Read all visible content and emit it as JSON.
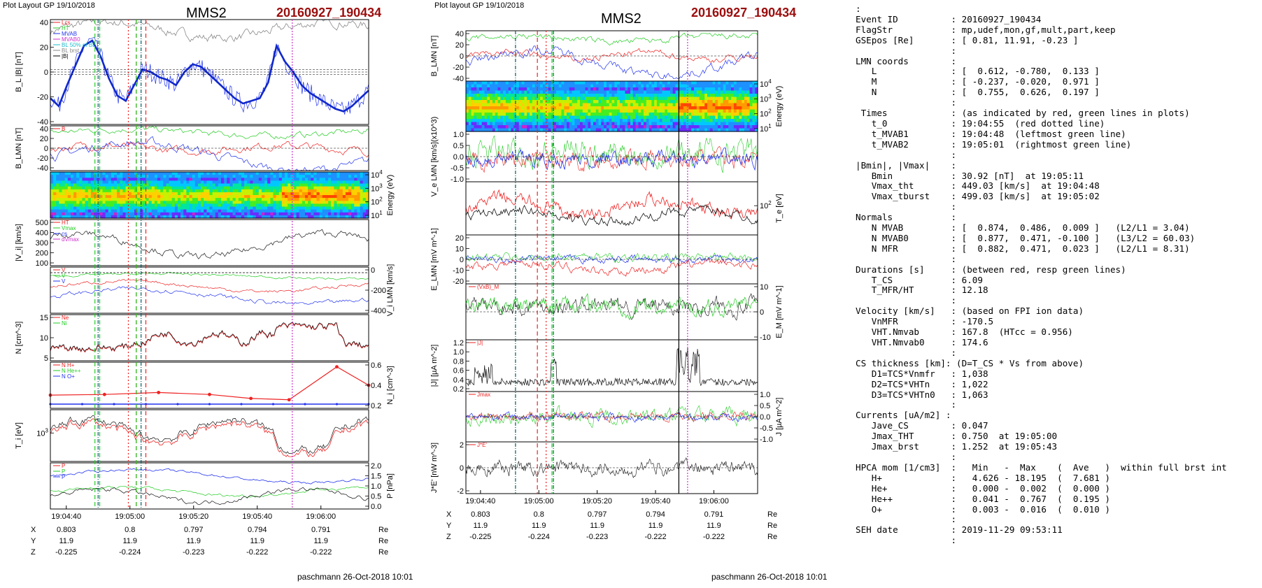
{
  "colors": {
    "title_red": "#9b0d0d",
    "red": "#ee2222",
    "green": "#22cc22",
    "blue": "#2233ee",
    "gray": "#888888",
    "magenta": "#cc33cc",
    "cyan": "#22bbcc"
  },
  "left_plot": {
    "layout_label": "Plot Layout GP 19/10/2018",
    "spacecraft": "MMS2",
    "event": "20160927_190434",
    "signature": "paschmann 26-Oct-2018 10:01",
    "panels": [
      {
        "id": "bl",
        "ylabel": "B_L |B| [nT]",
        "ticks": [
          "40",
          "20",
          "0",
          "-20",
          "-40"
        ],
        "legend": [
          "Lcs",
          "HT",
          "MVAB",
          "MVAB0",
          "BL 50% of BL",
          "BL brst",
          "|B|"
        ]
      },
      {
        "id": "blmn",
        "ylabel": "B_LMN [nT]",
        "ticks": [
          "40",
          "20",
          "0",
          "-20",
          "-40"
        ],
        "legend": [
          "B"
        ]
      },
      {
        "id": "spec",
        "ylabel": "Energy (eV)",
        "ticks": [
          "10^4",
          "10^3",
          "10^2",
          "10^1"
        ]
      },
      {
        "id": "vi",
        "ylabel": "|V_i| [km/s]",
        "ticks": [
          "500",
          "400",
          "300",
          "200",
          "100"
        ],
        "legend": [
          "HT",
          "Vmax",
          "cs",
          "dVmax"
        ]
      },
      {
        "id": "vilmn",
        "ylabel": "V_i LMN [km/s]",
        "ticks": [
          "0",
          "-200",
          "-400"
        ],
        "legend": [
          "V",
          "V",
          "V"
        ]
      },
      {
        "id": "n",
        "ylabel": "N [cm^-3]",
        "ticks": [
          "15",
          "10",
          "5"
        ],
        "legend": [
          "Ne",
          "Ni"
        ]
      },
      {
        "id": "ni",
        "ylabel": "N_i [cm^-3]",
        "ticks": [
          "0.6",
          "0.4",
          "0.2"
        ],
        "legend": [
          "N H+",
          "N He++",
          "N O+"
        ]
      },
      {
        "id": "ti",
        "ylabel": "T_i [eV]",
        "ticks": [
          "10^3"
        ]
      },
      {
        "id": "p",
        "ylabel": "P [nPa]",
        "ticks": [
          "2.0",
          "1.5",
          "1.0",
          "0.5",
          "0.0"
        ],
        "legend": [
          "P",
          "P",
          "P"
        ]
      }
    ],
    "time_ticks": [
      "19:04:40",
      "19:05:00",
      "19:05:20",
      "19:05:40",
      "19:06:00"
    ],
    "ephemeris": {
      "X": [
        "0.803",
        "0.8",
        "0.797",
        "0.794",
        "0.791"
      ],
      "Y": [
        "11.9",
        "11.9",
        "11.9",
        "11.9",
        "11.9"
      ],
      "Z": [
        "-0.225",
        "-0.224",
        "-0.223",
        "-0.222",
        "-0.222"
      ],
      "unit": "Re"
    }
  },
  "mid_plot": {
    "layout_label": "Plot layout GP 19/10/2018",
    "spacecraft": "MMS2",
    "event": "20160927_190434",
    "signature": "paschmann 26-Oct-2018 10:01",
    "panels": [
      {
        "id": "blmn",
        "ylabel": "B_LMN [nT]",
        "ticks": [
          "40",
          "20",
          "0",
          "-20",
          "-40"
        ]
      },
      {
        "id": "espec",
        "ylabel": "Energy (eV)",
        "ticks": [
          "10^4",
          "10^3",
          "10^2",
          "10^1"
        ]
      },
      {
        "id": "ve",
        "ylabel": "V_e LMN [km/s](x10^3)",
        "ticks": [
          "1.0",
          "0.5",
          "0.0",
          "-0.5",
          "-1.0"
        ]
      },
      {
        "id": "te",
        "ylabel": "T_e [eV]",
        "ticks": [
          "10^2"
        ]
      },
      {
        "id": "elmn",
        "ylabel": "E_LMN [mV m^-1]",
        "ticks": [
          "20",
          "10",
          "0",
          "-10",
          "-20"
        ]
      },
      {
        "id": "em",
        "ylabel": "E_M [mV m^-1]",
        "ticks": [
          "10",
          "0",
          "-10"
        ],
        "legend": [
          "(VxB)_M"
        ]
      },
      {
        "id": "j",
        "ylabel": "|J| [µA m^-2]",
        "ticks": [
          "1.2",
          "1.0",
          "0.8",
          "0.6",
          "0.4",
          "0.2"
        ],
        "legend": [
          "|J|"
        ]
      },
      {
        "id": "jlmn",
        "ylabel": "J [µA m^-2]",
        "ticks": [
          "1.0",
          "0.5",
          "0.0",
          "-0.5",
          "-1.0"
        ],
        "legend": [
          "Jmax"
        ]
      },
      {
        "id": "je",
        "ylabel": "J*E' [nW m^-3]",
        "ticks": [
          "2",
          "0",
          "-2"
        ],
        "legend": [
          "J*E'"
        ]
      }
    ],
    "time_ticks": [
      "19:04:40",
      "19:05:00",
      "19:05:20",
      "19:05:40",
      "19:06:00"
    ],
    "ephemeris": {
      "X": [
        "0.803",
        "0.8",
        "0.797",
        "0.794",
        "0.791"
      ],
      "Y": [
        "11.9",
        "11.9",
        "11.9",
        "11.9",
        "11.9"
      ],
      "Z": [
        "-0.225",
        "-0.224",
        "-0.223",
        "-0.222",
        "-0.222"
      ],
      "unit": "Re"
    }
  },
  "info_lines": [
    ":",
    "Event ID          : 20160927_190434",
    "FlagStr           : mp,udef,mon,gf,mult,part,keep",
    "GSEpos [Re]       : [ 0.81, 11.91, -0.23 ]",
    "                  :",
    "LMN coords        :",
    "   L              : [  0.612, -0.780,  0.133 ]",
    "   M              : [ -0.237, -0.020,  0.971 ]",
    "   N              : [  0.755,  0.626,  0.197 ]",
    "                  :",
    " Times            : (as indicated by red, green lines in plots)",
    "   t_0            : 19:04:55  (red dotted line)",
    "   t_MVAB1        : 19:04:48  (leftmost green line)",
    "   t_MVAB2        : 19:05:01  (rightmost green line)",
    "                  :",
    "|Bmin|, |Vmax|    :",
    "   Bmin           : 30.92 [nT]  at 19:05:11",
    "   Vmax_tht       : 449.03 [km/s]  at 19:04:48",
    "   Vmax_tburst    : 499.03 [km/s]  at 19:05:02",
    "                  :",
    "Normals           :",
    "   N MVAB         : [  0.874,  0.486,  0.009 ]   (L2/L1 = 3.04)",
    "   N MVAB0        : [  0.877,  0.471, -0.100 ]   (L3/L2 = 60.03)",
    "   N MFR          : [  0.882,  0.471,  0.023 ]   (L2/L1 = 8.31)",
    "                  :",
    "Durations [s]     : (between red, resp green lines)",
    "   T_CS           : 6.09",
    "   T_MFR/HT       : 12.18",
    "                  :",
    "Velocity [km/s]   : (based on FPI ion data)",
    "   VnMFR          : -170.5",
    "   VHT.Nmvab      : 167.8  (HTcc = 0.956)",
    "   VHT.Nmvab0     : 174.6",
    "                  :",
    "CS thickness [km]: (D=T_CS * Vs from above)",
    "   D1=TCS*Vnmfr   : 1,038",
    "   D2=TCS*VHTn    : 1,022",
    "   D3=TCS*VHTn0   : 1,063",
    "                  :",
    "Currents [uA/m2] :",
    "   Jave_CS        : 0.047",
    "   Jmax_THT       : 0.750  at 19:05:00",
    "   Jmax_brst      : 1.252  at 19:05:43",
    "                  :",
    "HPCA mom [1/cm3]  :   Min   -  Max    (  Ave   )  within full brst int",
    "   H+             :   4.626 - 18.195  (  7.681 )",
    "   He+            :   0.000 -  0.002  (  0.000 )",
    "   He++           :   0.041 -  0.767  (  0.195 )",
    "   O+             :   0.003 -  0.016  (  0.010 )",
    "                  :",
    "SEH date          : 2019-11-29 09:53:11",
    "                  :"
  ],
  "chart_data": [
    {
      "type": "line",
      "title": "MMS2",
      "subtitle": "20160927_190434",
      "x_ticks": [
        "19:04:40",
        "19:05:00",
        "19:05:20",
        "19:05:40",
        "19:06:00"
      ],
      "panels": {
        "bl_smoothed_nT": [
          -20,
          -26,
          -10,
          5,
          20,
          24,
          12,
          -5,
          -18,
          -22,
          -10,
          2,
          0,
          -4,
          -6,
          -10,
          0,
          6,
          4,
          -2,
          -8,
          -14,
          -20,
          -24,
          -22,
          -20,
          -8,
          20,
          8,
          0,
          -10,
          -16,
          -20,
          -24,
          -28,
          -30,
          -26,
          -20,
          -14
        ],
        "ni_N_Hepp": [
          [
            0,
            0.2
          ],
          [
            0.17,
            0.21
          ],
          [
            0.34,
            0.24
          ],
          [
            0.5,
            0.21
          ],
          [
            0.63,
            0.15
          ],
          [
            0.75,
            0.13
          ],
          [
            0.9,
            0.63
          ],
          [
            1.0,
            0.35
          ]
        ],
        "ni_ylim": [
          0,
          0.6
        ],
        "bl_ylim": [
          -40,
          40
        ]
      }
    },
    {
      "type": "line",
      "title": "MMS2",
      "subtitle": "20160927_190434",
      "x_ticks": [
        "19:04:40",
        "19:05:00",
        "19:05:20",
        "19:05:40",
        "19:06:00"
      ],
      "panels": {
        "blmn_ylim": [
          -40,
          40
        ],
        "j_ylim": [
          0,
          1.2
        ],
        "je_ylim": [
          -3,
          3
        ]
      }
    }
  ]
}
